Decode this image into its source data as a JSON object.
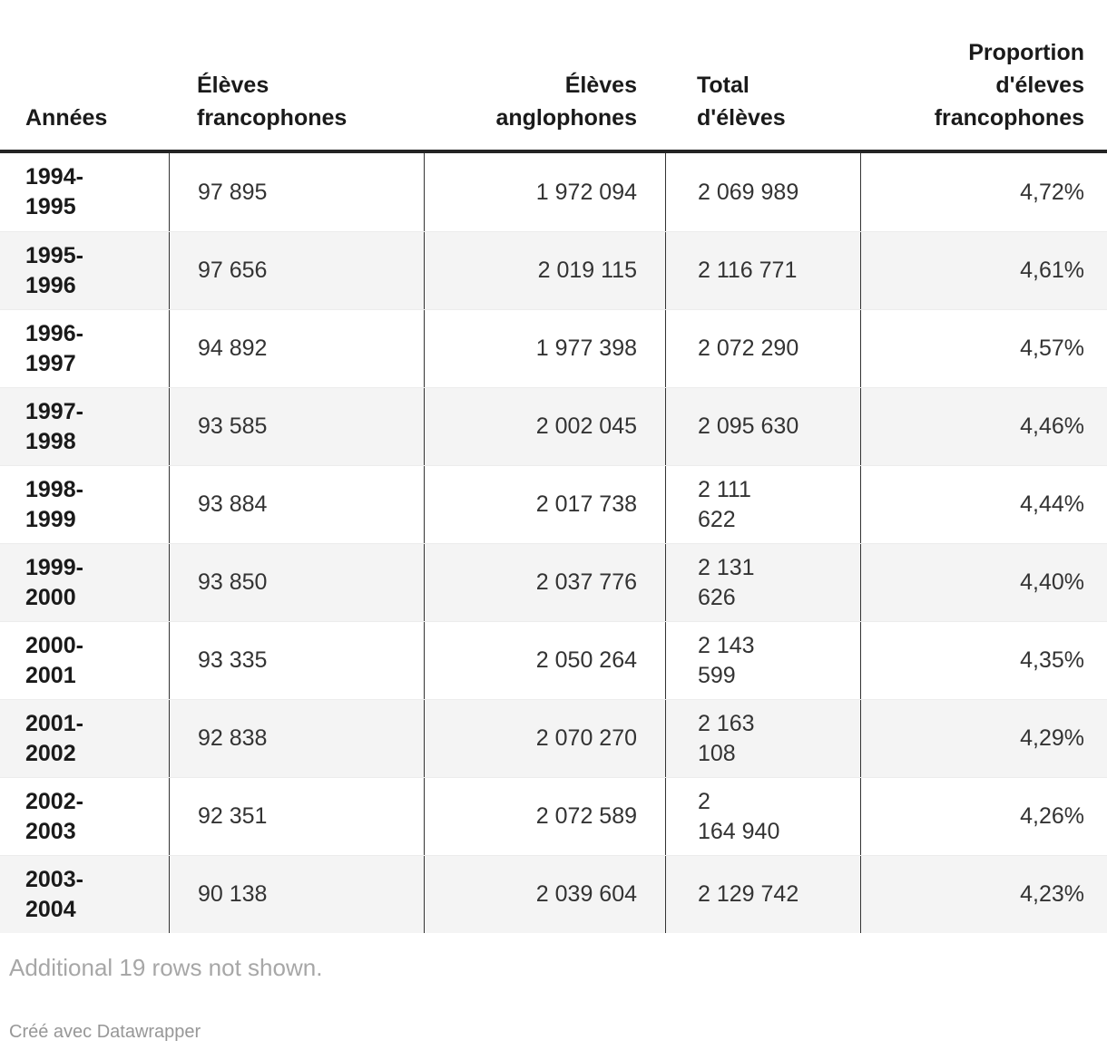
{
  "table": {
    "columns": [
      {
        "label": "Années"
      },
      {
        "label": "Élèves\nfrancophones"
      },
      {
        "label": "Élèves\nanglophones"
      },
      {
        "label": "Total\nd'élèves"
      },
      {
        "label": "Proportion\nd'éleves\nfrancophones"
      }
    ],
    "rows": [
      {
        "annee": "1994-\n1995",
        "francophones": "97 895",
        "anglophones": "1 972 094",
        "total": "2 069 989",
        "proportion": "4,72%"
      },
      {
        "annee": "1995-\n1996",
        "francophones": "97 656",
        "anglophones": "2 019 115",
        "total": "2 116 771",
        "proportion": "4,61%"
      },
      {
        "annee": "1996-\n1997",
        "francophones": "94 892",
        "anglophones": "1 977 398",
        "total": "2 072 290",
        "proportion": "4,57%"
      },
      {
        "annee": "1997-\n1998",
        "francophones": "93 585",
        "anglophones": "2 002 045",
        "total": "2 095 630",
        "proportion": "4,46%"
      },
      {
        "annee": "1998-\n1999",
        "francophones": "93 884",
        "anglophones": "2 017 738",
        "total": "2 111\n622",
        "proportion": "4,44%"
      },
      {
        "annee": "1999-\n2000",
        "francophones": "93 850",
        "anglophones": "2 037 776",
        "total": "2 131\n626",
        "proportion": "4,40%"
      },
      {
        "annee": "2000-\n2001",
        "francophones": "93 335",
        "anglophones": "2 050 264",
        "total": "2 143\n599",
        "proportion": "4,35%"
      },
      {
        "annee": "2001-\n2002",
        "francophones": "92 838",
        "anglophones": "2 070 270",
        "total": "2 163\n108",
        "proportion": "4,29%"
      },
      {
        "annee": "2002-\n2003",
        "francophones": "92 351",
        "anglophones": "2 072 589",
        "total": "2\n164 940",
        "proportion": "4,26%"
      },
      {
        "annee": "2003-\n2004",
        "francophones": "90 138",
        "anglophones": "2 039 604",
        "total": "2 129 742",
        "proportion": "4,23%"
      }
    ]
  },
  "footer": {
    "note": "Additional 19 rows not shown.",
    "credit": "Créé avec Datawrapper"
  },
  "colors": {
    "header_text": "#1a1a1a",
    "body_text": "#333333",
    "row_stripe": "#f4f4f4",
    "rule_dark": "#242424",
    "rule_light": "#ececec",
    "muted_text": "#a7a7a7"
  },
  "chart_data": {
    "type": "table",
    "title": "",
    "columns": [
      "Années",
      "Élèves francophones",
      "Élèves anglophones",
      "Total d'élèves",
      "Proportion d'éleves francophones"
    ],
    "rows": [
      [
        "1994-1995",
        97895,
        1972094,
        2069989,
        "4,72%"
      ],
      [
        "1995-1996",
        97656,
        2019115,
        2116771,
        "4,61%"
      ],
      [
        "1996-1997",
        94892,
        1977398,
        2072290,
        "4,57%"
      ],
      [
        "1997-1998",
        93585,
        2002045,
        2095630,
        "4,46%"
      ],
      [
        "1998-1999",
        93884,
        2017738,
        2111622,
        "4,44%"
      ],
      [
        "1999-2000",
        93850,
        2037776,
        2131626,
        "4,40%"
      ],
      [
        "2000-2001",
        93335,
        2050264,
        2143599,
        "4,35%"
      ],
      [
        "2001-2002",
        92838,
        2070270,
        2163108,
        "4,29%"
      ],
      [
        "2002-2003",
        92351,
        2072589,
        2164940,
        "4,26%"
      ],
      [
        "2003-2004",
        90138,
        2039604,
        2129742,
        "4,23%"
      ]
    ],
    "hidden_rows_note": "Additional 19 rows not shown."
  }
}
